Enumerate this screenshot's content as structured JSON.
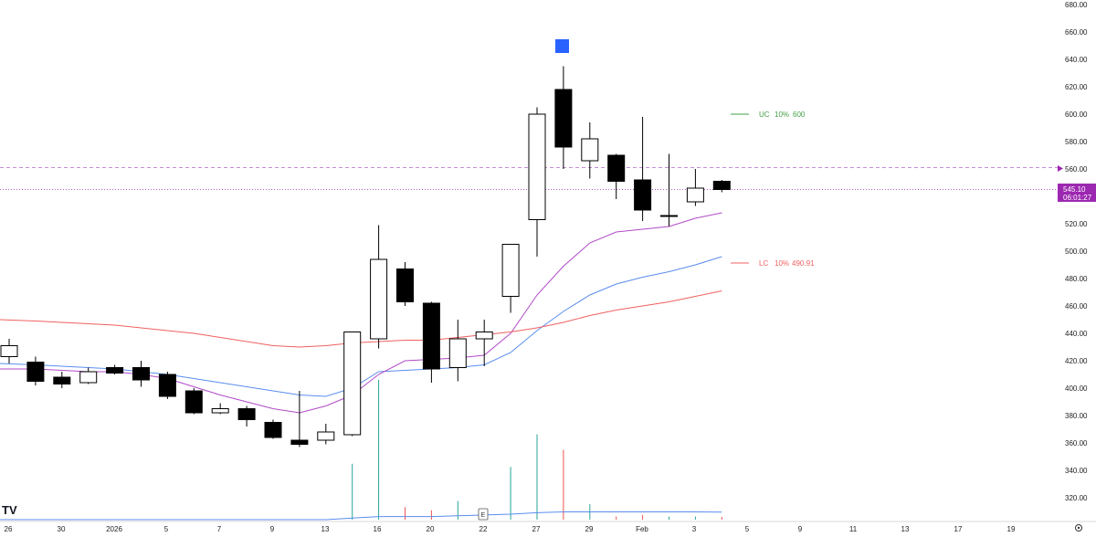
{
  "chart_data": {
    "type": "candlestick",
    "price_axis": {
      "range": [
        305,
        683
      ],
      "ticks": [
        "680.00",
        "660.00",
        "640.00",
        "620.00",
        "600.00",
        "580.00",
        "560.00",
        "540.00",
        "520.00",
        "500.00",
        "480.00",
        "460.00",
        "440.00",
        "420.00",
        "400.00",
        "380.00",
        "360.00",
        "340.00",
        "320.00"
      ]
    },
    "x_axis": {
      "labels": [
        "26",
        "30",
        "2026",
        "5",
        "7",
        "9",
        "13",
        "16",
        "20",
        "22",
        "27",
        "29",
        "Feb",
        "3",
        "5",
        "9",
        "11",
        "13",
        "17",
        "19"
      ]
    },
    "candles": [
      {
        "o": 423,
        "h": 436,
        "l": 418,
        "c": 431
      },
      {
        "o": 419,
        "h": 423,
        "l": 402,
        "c": 405
      },
      {
        "o": 408,
        "h": 412,
        "l": 400,
        "c": 403
      },
      {
        "o": 404,
        "h": 415,
        "l": 403,
        "c": 412
      },
      {
        "o": 415,
        "h": 417,
        "l": 410,
        "c": 411
      },
      {
        "o": 415,
        "h": 420,
        "l": 401,
        "c": 406
      },
      {
        "o": 410,
        "h": 412,
        "l": 392,
        "c": 394
      },
      {
        "o": 398,
        "h": 400,
        "l": 381,
        "c": 382
      },
      {
        "o": 382,
        "h": 389,
        "l": 381,
        "c": 385
      },
      {
        "o": 385,
        "h": 387,
        "l": 372,
        "c": 377
      },
      {
        "o": 375,
        "h": 377,
        "l": 363,
        "c": 364
      },
      {
        "o": 362,
        "h": 398,
        "l": 357,
        "c": 359
      },
      {
        "o": 362,
        "h": 374,
        "l": 359,
        "c": 368
      },
      {
        "o": 366,
        "h": 441,
        "l": 365,
        "c": 441
      },
      {
        "o": 436,
        "h": 519,
        "l": 429,
        "c": 494
      },
      {
        "o": 487,
        "h": 492,
        "l": 460,
        "c": 463
      },
      {
        "o": 462,
        "h": 463,
        "l": 404,
        "c": 414
      },
      {
        "o": 415,
        "h": 450,
        "l": 405,
        "c": 436
      },
      {
        "o": 436,
        "h": 450,
        "l": 416,
        "c": 441
      },
      {
        "o": 467,
        "h": 505,
        "l": 455,
        "c": 505
      },
      {
        "o": 523,
        "h": 605,
        "l": 496,
        "c": 600
      },
      {
        "o": 618,
        "h": 635,
        "l": 560,
        "c": 576
      },
      {
        "o": 566,
        "h": 594,
        "l": 553,
        "c": 582
      },
      {
        "o": 570,
        "h": 571,
        "l": 538,
        "c": 551
      },
      {
        "o": 552,
        "h": 598,
        "l": 522,
        "c": 530
      },
      {
        "o": 526,
        "h": 571,
        "l": 518,
        "c": 526
      },
      {
        "o": 536,
        "h": 560,
        "l": 533,
        "c": 546
      },
      {
        "o": 551,
        "h": 552,
        "l": 543,
        "c": 545
      }
    ],
    "series": [
      {
        "values": [
          418,
          417,
          416,
          415,
          414,
          412,
          410,
          407,
          404,
          401,
          398,
          395,
          394,
          400,
          412,
          413,
          414,
          415,
          417,
          426,
          442,
          456,
          468,
          476,
          481,
          485,
          490,
          496
        ]
      },
      {
        "values": [
          414,
          414,
          413,
          412,
          412,
          410,
          407,
          401,
          395,
          390,
          385,
          382,
          387,
          395,
          410,
          420,
          421,
          422,
          424,
          440,
          468,
          489,
          506,
          514,
          516,
          518,
          524,
          528
        ]
      },
      {
        "values": [
          450,
          449,
          448,
          447,
          446,
          444,
          442,
          440,
          437,
          434,
          431,
          430,
          431,
          433,
          434,
          435,
          435,
          437,
          439,
          441,
          444,
          448,
          453,
          457,
          460,
          463,
          467,
          471
        ]
      }
    ],
    "legend": [
      {
        "label": "UC",
        "pct": "10%",
        "value": "600"
      },
      {
        "label": "LC",
        "pct": "10%",
        "value": "490.91"
      }
    ],
    "current_price": {
      "value": "545.10",
      "countdown": "06:01:27",
      "level": 545.1
    },
    "reference_level": 561,
    "volume": [
      0.0,
      0.0,
      0.0,
      0.0,
      0.0,
      0.0,
      0.0,
      0.0,
      0.0,
      0.0,
      0.0,
      0.0,
      0.0,
      0.36,
      0.9,
      0.08,
      0.06,
      0.12,
      0.04,
      0.34,
      0.55,
      0.45,
      0.1,
      0.02,
      0.03,
      0.02,
      0.02,
      0.01
    ],
    "earnings_marker": "E",
    "logo": "TV"
  }
}
